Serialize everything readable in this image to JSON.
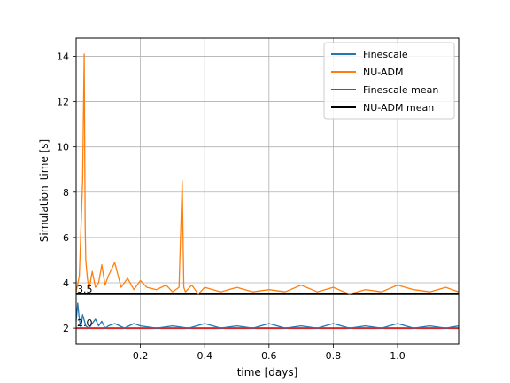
{
  "chart_data": {
    "type": "line",
    "title": "",
    "xlabel": "time [days]",
    "ylabel": "Simulation_time [s]",
    "xlim": [
      0.0,
      1.19
    ],
    "ylim": [
      1.3,
      14.8
    ],
    "x_ticks": [
      0.2,
      0.4,
      0.6,
      0.8,
      1.0
    ],
    "x_tick_labels": [
      "0.2",
      "0.4",
      "0.6",
      "0.8",
      "1.0"
    ],
    "y_ticks": [
      2,
      4,
      6,
      8,
      10,
      12,
      14
    ],
    "y_tick_labels": [
      "2",
      "4",
      "6",
      "8",
      "10",
      "12",
      "14"
    ],
    "grid": true,
    "legend_position": "top-right",
    "series": [
      {
        "name": "Finescale",
        "color": "#1f77b4",
        "x": [
          0.0,
          0.005,
          0.01,
          0.015,
          0.02,
          0.03,
          0.04,
          0.05,
          0.06,
          0.07,
          0.08,
          0.09,
          0.1,
          0.12,
          0.15,
          0.18,
          0.2,
          0.25,
          0.3,
          0.35,
          0.4,
          0.45,
          0.5,
          0.55,
          0.6,
          0.65,
          0.7,
          0.75,
          0.8,
          0.85,
          0.9,
          0.95,
          1.0,
          1.05,
          1.1,
          1.15,
          1.19
        ],
        "y": [
          2.3,
          3.1,
          2.4,
          2.0,
          2.6,
          2.1,
          2.0,
          2.2,
          2.4,
          2.1,
          2.3,
          2.0,
          2.1,
          2.2,
          2.0,
          2.2,
          2.1,
          2.0,
          2.1,
          2.0,
          2.2,
          2.0,
          2.1,
          2.0,
          2.2,
          2.0,
          2.1,
          2.0,
          2.2,
          2.0,
          2.1,
          2.0,
          2.2,
          2.0,
          2.1,
          2.0,
          2.1
        ]
      },
      {
        "name": "NU-ADM",
        "color": "#ff7f0e",
        "x": [
          0.0,
          0.01,
          0.02,
          0.025,
          0.028,
          0.03,
          0.035,
          0.04,
          0.05,
          0.06,
          0.07,
          0.08,
          0.09,
          0.1,
          0.12,
          0.14,
          0.16,
          0.18,
          0.2,
          0.22,
          0.25,
          0.28,
          0.3,
          0.32,
          0.33,
          0.335,
          0.34,
          0.36,
          0.38,
          0.4,
          0.45,
          0.5,
          0.55,
          0.6,
          0.65,
          0.7,
          0.75,
          0.8,
          0.85,
          0.9,
          0.95,
          1.0,
          1.05,
          1.1,
          1.15,
          1.19
        ],
        "y": [
          3.6,
          4.3,
          8.5,
          14.1,
          6.5,
          5.0,
          4.2,
          3.7,
          4.5,
          3.8,
          4.0,
          4.8,
          3.9,
          4.3,
          4.9,
          3.8,
          4.2,
          3.7,
          4.1,
          3.8,
          3.7,
          3.9,
          3.6,
          3.8,
          8.5,
          3.8,
          3.6,
          3.9,
          3.5,
          3.8,
          3.6,
          3.8,
          3.6,
          3.7,
          3.6,
          3.9,
          3.6,
          3.8,
          3.5,
          3.7,
          3.6,
          3.9,
          3.7,
          3.6,
          3.8,
          3.6
        ]
      },
      {
        "name": "Finescale mean",
        "color": "#d62728",
        "mean": 2.0
      },
      {
        "name": "NU-ADM mean",
        "color": "#000000",
        "mean": 3.5
      }
    ],
    "annotations": [
      {
        "text": "3.5",
        "x": 0.0,
        "y": 3.5
      },
      {
        "text": "2.0",
        "x": 0.0,
        "y": 2.0
      }
    ]
  }
}
